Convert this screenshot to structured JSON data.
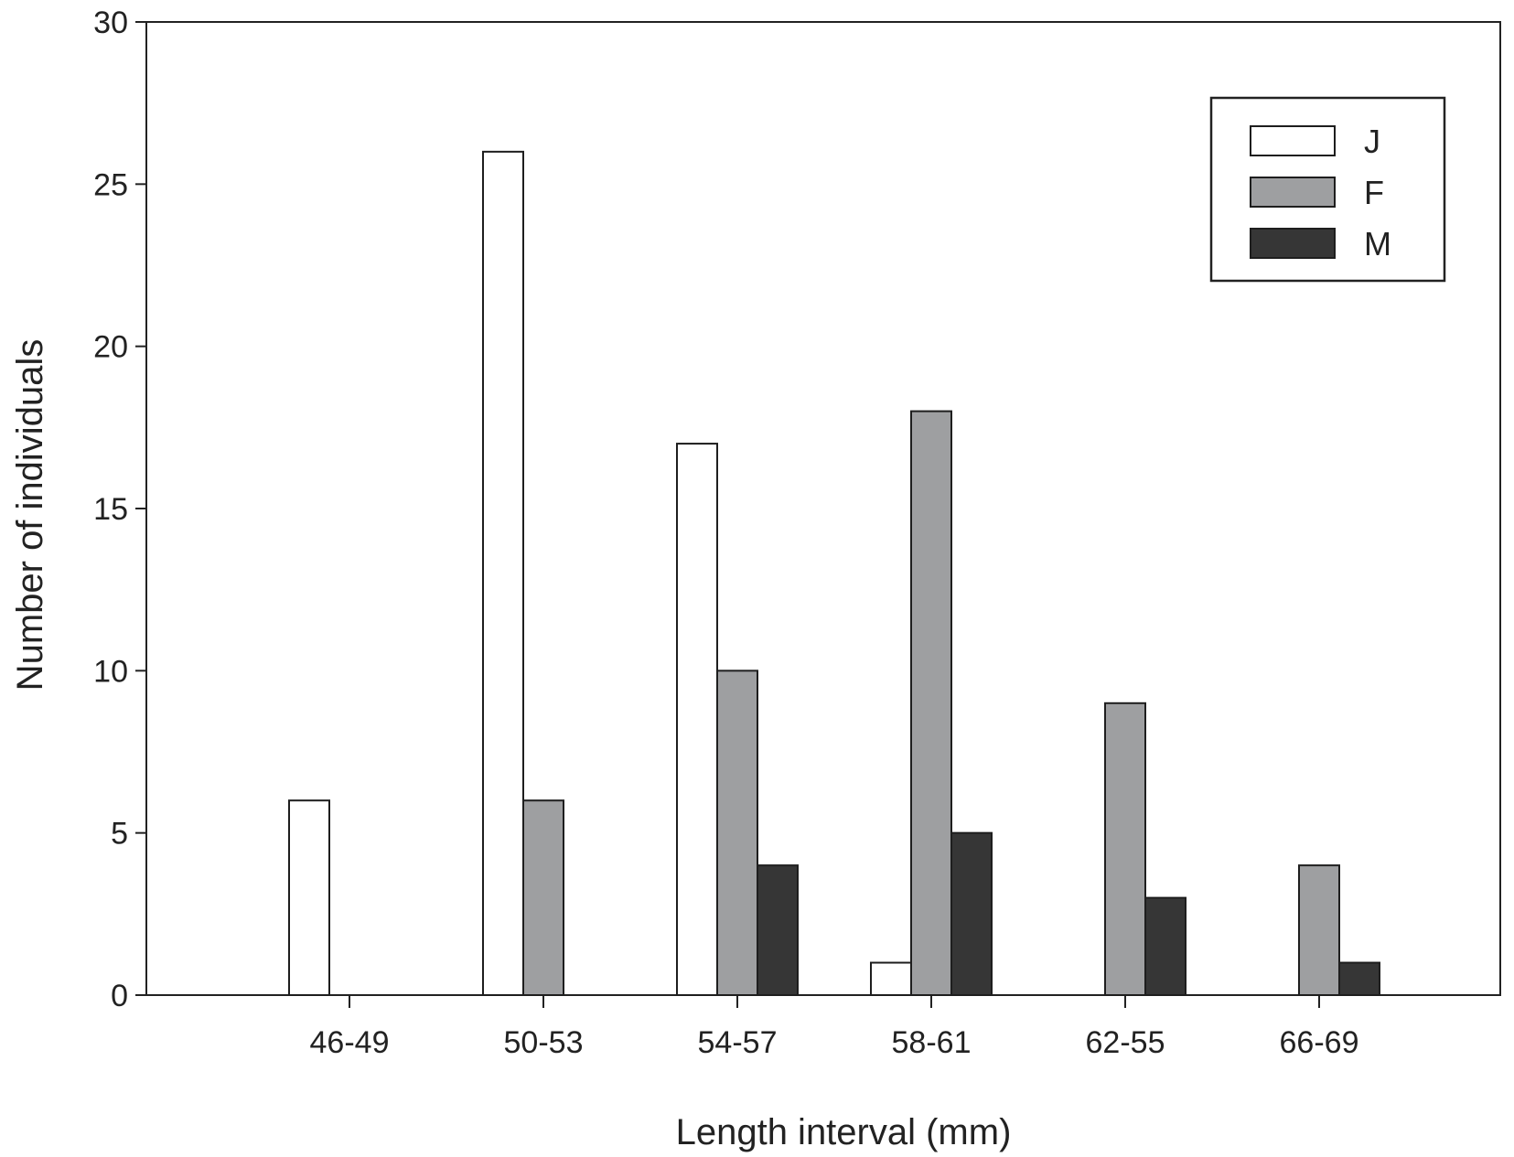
{
  "chart_data": {
    "type": "bar",
    "title": "",
    "xlabel": "Length interval (mm)",
    "ylabel": "Number of individuals",
    "categories": [
      "46-49",
      "50-53",
      "54-57",
      "58-61",
      "62-55",
      "66-69"
    ],
    "series": [
      {
        "name": "J",
        "color": "#ffffff",
        "values": [
          6,
          26,
          17,
          1,
          0,
          0
        ]
      },
      {
        "name": "F",
        "color": "#9e9fa1",
        "values": [
          0,
          6,
          10,
          18,
          9,
          4
        ]
      },
      {
        "name": "M",
        "color": "#363636",
        "values": [
          0,
          0,
          4,
          5,
          3,
          1
        ]
      }
    ],
    "ylim": [
      0,
      30
    ],
    "yticks": [
      0,
      5,
      10,
      15,
      20,
      25,
      30
    ],
    "grid": false,
    "legend_position": "top-right"
  }
}
